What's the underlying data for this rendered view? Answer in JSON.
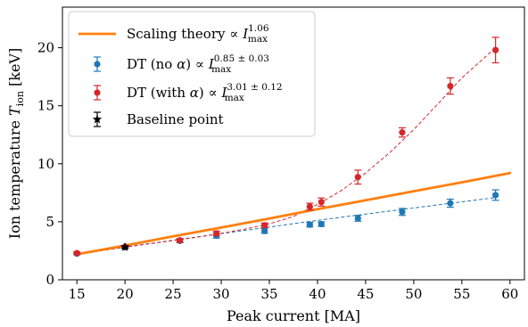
{
  "chart_data": {
    "type": "scatter",
    "xlabel": "Peak current [MA]",
    "ylabel": {
      "main": "Ion temperature ",
      "symbol": "T",
      "subscript": "ion",
      "unit": " [keV]"
    },
    "xlim": [
      13.5,
      61.5
    ],
    "ylim": [
      0,
      23.5
    ],
    "xticks": [
      15,
      20,
      25,
      30,
      35,
      40,
      45,
      50,
      55,
      60
    ],
    "yticks": [
      0,
      5,
      10,
      15,
      20
    ],
    "grid": false,
    "legend_position": "top-left",
    "series": [
      {
        "id": "scaling",
        "kind": "line",
        "name": {
          "text": "Scaling theory ∝ ",
          "var": "I",
          "sub": "max",
          "sup": "1.06"
        },
        "color": "#ff7f0e",
        "x": [
          15,
          20,
          25,
          30,
          35,
          40,
          45,
          50,
          55,
          60
        ],
        "y": [
          2.2,
          2.95,
          3.74,
          4.5,
          5.28,
          6.08,
          6.85,
          7.63,
          8.4,
          9.2
        ]
      },
      {
        "id": "no_alpha",
        "kind": "errorbar",
        "name": {
          "text": "DT (no ",
          "alpha": "α",
          "text2": ") ∝ ",
          "var": "I",
          "sub": "max",
          "sup": "0.85 ± 0.03"
        },
        "color": "#1f77b4",
        "x": [
          15,
          20,
          25.7,
          29.5,
          34.5,
          39.2,
          40.4,
          44.2,
          48.8,
          53.8,
          58.5
        ],
        "y": [
          2.25,
          2.8,
          3.35,
          3.8,
          4.2,
          4.75,
          4.8,
          5.3,
          5.85,
          6.6,
          7.3
        ],
        "err": [
          0.1,
          0.1,
          0.15,
          0.2,
          0.2,
          0.2,
          0.2,
          0.25,
          0.3,
          0.35,
          0.45
        ],
        "fit_x": [
          15,
          20,
          25,
          30,
          35,
          40,
          45,
          50,
          55,
          58.5
        ],
        "fit_y": [
          2.2,
          2.82,
          3.41,
          3.98,
          4.55,
          5.12,
          5.66,
          6.19,
          6.72,
          7.08
        ]
      },
      {
        "id": "with_alpha",
        "kind": "errorbar",
        "name": {
          "text": "DT (with ",
          "alpha": "α",
          "text2": ") ∝ ",
          "var": "I",
          "sub": "max",
          "sup": "3.01 ± 0.12"
        },
        "color": "#d62728",
        "x": [
          15,
          20,
          25.7,
          29.5,
          34.5,
          39.2,
          40.4,
          44.2,
          48.8,
          53.8,
          58.5
        ],
        "y": [
          2.3,
          2.85,
          3.4,
          4.0,
          4.7,
          6.3,
          6.7,
          8.85,
          12.7,
          16.7,
          19.8
        ],
        "err": [
          0.1,
          0.1,
          0.15,
          0.2,
          0.2,
          0.3,
          0.35,
          0.6,
          0.4,
          0.7,
          1.1
        ],
        "fit_x": [
          15,
          17.5,
          20,
          22.5,
          25,
          27.5,
          30,
          32.5,
          35,
          37.5,
          40,
          42.5,
          45,
          47.5,
          50,
          52.5,
          55,
          57.5,
          58.5
        ],
        "fit_y": [
          2.2,
          2.5,
          2.8,
          3.1,
          3.38,
          3.67,
          4.0,
          4.38,
          4.82,
          5.45,
          6.5,
          7.7,
          9.2,
          10.95,
          12.95,
          15.15,
          17.4,
          19.25,
          20.0
        ]
      },
      {
        "id": "baseline",
        "kind": "point",
        "marker": "star",
        "name": {
          "text": "Baseline point"
        },
        "color": "#000000",
        "x": [
          20
        ],
        "y": [
          2.82
        ],
        "err": [
          0.1
        ]
      }
    ]
  }
}
